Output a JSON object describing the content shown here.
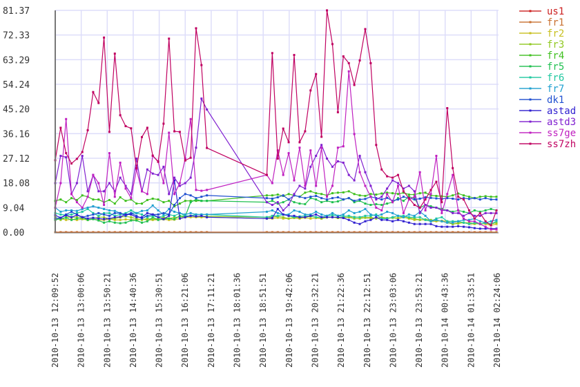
{
  "chart_data": {
    "type": "line",
    "title": "",
    "xlabel": "",
    "ylabel": "",
    "ylim": [
      0,
      81.37
    ],
    "y_ticks": [
      "0.00",
      "9.04",
      "18.08",
      "27.12",
      "36.16",
      "45.20",
      "54.24",
      "63.29",
      "72.33",
      "81.37"
    ],
    "x_ticks": [
      "2010-10-13 12:09:52",
      "2010-10-13 13:00:06",
      "2010-10-13 13:50:21",
      "2010-10-13 14:40:36",
      "2010-10-13 15:30:51",
      "2010-10-13 16:21:06",
      "2010-10-13 17:11:21",
      "2010-10-13 18:01:36",
      "2010-10-13 18:51:51",
      "2010-10-13 19:42:06",
      "2010-10-13 20:32:21",
      "2010-10-13 21:22:36",
      "2010-10-13 22:12:51",
      "2010-10-13 23:03:06",
      "2010-10-13 23:53:21",
      "2010-10-14 00:43:36",
      "2010-10-14 01:33:51",
      "2010-10-14 02:24:06"
    ],
    "x_range_minutes": [
      0,
      854.25
    ],
    "grid": true,
    "legend_position": "right",
    "sampling": [
      {
        "start_min": 0,
        "step_min": 10.47,
        "count": 29
      },
      {
        "start_min": 409,
        "step_min": 10.57,
        "count": 43
      }
    ],
    "series": [
      {
        "name": "us1",
        "color": "#cc2020",
        "values": [
          0,
          0,
          0,
          0,
          0,
          0,
          0,
          0,
          0,
          0,
          0,
          0,
          0,
          0,
          0,
          0,
          0,
          0,
          0,
          0,
          0,
          0,
          0,
          0,
          0,
          0,
          0,
          0,
          0,
          0,
          0,
          0,
          0,
          0,
          0,
          0,
          0,
          0,
          0,
          0,
          0,
          0,
          0,
          0,
          0,
          0,
          0,
          0,
          0,
          0,
          0,
          0,
          0,
          0,
          0,
          0,
          0,
          0,
          0,
          0,
          0,
          0,
          0,
          0,
          0,
          0,
          0,
          0,
          0,
          0,
          0,
          0
        ]
      },
      {
        "name": "fr1",
        "color": "#c87030",
        "values": [
          0,
          0,
          0,
          0,
          0,
          0,
          0,
          0,
          0,
          0,
          0,
          0,
          0,
          0,
          0,
          0,
          0,
          0,
          0,
          0,
          0,
          0,
          0,
          0,
          0,
          0,
          0,
          0,
          0,
          0,
          0,
          0,
          0,
          0,
          0,
          0,
          0,
          0,
          0,
          0,
          0,
          0,
          0,
          0,
          0,
          0,
          0,
          0,
          0,
          0,
          0,
          0,
          0,
          0,
          0,
          0,
          0,
          0,
          0,
          0,
          0,
          0,
          0,
          0,
          0,
          0,
          0,
          0,
          0,
          0,
          0,
          0
        ]
      },
      {
        "name": "fr2",
        "color": "#c8c020",
        "values": [
          4.5,
          5,
          4.5,
          4.7,
          4.5,
          4.8,
          4.5,
          4.8,
          4.5,
          4.5,
          4.8,
          4.5,
          4.5,
          4.7,
          4.6,
          4.5,
          4.8,
          4.5,
          4.5,
          4.6,
          4.7,
          4.5,
          4.6,
          5,
          5.5,
          5.5,
          5.5,
          5.5,
          5.5,
          5,
          5,
          5.3,
          5,
          5,
          5.2,
          5,
          5.3,
          5,
          5.2,
          5,
          5.4,
          5.5,
          5.2,
          5.5,
          5.5,
          5.6,
          5.5,
          5.3,
          5,
          5.3,
          5.3,
          5,
          5.3,
          5.2,
          5.5,
          5,
          4.5,
          4.6,
          4.5,
          4,
          4,
          4.2,
          4,
          3,
          3.5,
          3.5,
          3,
          3,
          3.2,
          3,
          2.5,
          3
        ]
      },
      {
        "name": "fr3",
        "color": "#90c820",
        "values": [
          5.5,
          4.5,
          5.5,
          5.5,
          5.5,
          4.8,
          4.5,
          5,
          5.5,
          5.5,
          4.8,
          5,
          5.5,
          5.8,
          5.5,
          5,
          4.5,
          5,
          4.7,
          5,
          5.5,
          5,
          5.5,
          5.5,
          5.8,
          6,
          5.8,
          5.8,
          5.8,
          5.5,
          5.5,
          5.8,
          5.5,
          5,
          5.5,
          5.3,
          5.5,
          5.8,
          5.5,
          5,
          5.5,
          5.6,
          5.2,
          5.3,
          5.5,
          5,
          5,
          5.3,
          5.5,
          5,
          5.5,
          5.2,
          5.3,
          5,
          5.5,
          5.2,
          5,
          4.5,
          4.7,
          4.5,
          4.3,
          4,
          3.5,
          3,
          3.2,
          3.5,
          3.5,
          3.2,
          3,
          3.3,
          3,
          3.5
        ]
      },
      {
        "name": "fr4",
        "color": "#40c020",
        "values": [
          11.5,
          12,
          11,
          12.5,
          11.8,
          13.5,
          13,
          12,
          12,
          11,
          11.8,
          10.5,
          12.8,
          11.5,
          12,
          10.5,
          10.5,
          11.8,
          12.3,
          12,
          11,
          11.5,
          9.5,
          10.5,
          11.5,
          11.5,
          11.5,
          11.5,
          11.5,
          13.5,
          13.5,
          13.8,
          13.3,
          14,
          13.5,
          13,
          14.5,
          15,
          14.3,
          14,
          13.5,
          14.3,
          14.5,
          14.6,
          15,
          14,
          13.5,
          13.3,
          14,
          13.8,
          14.2,
          14.5,
          14.3,
          14,
          14.5,
          13.8,
          13.8,
          14.3,
          14.5,
          13.5,
          13.3,
          13.2,
          13,
          13.5,
          14.2,
          13.5,
          13,
          12.5,
          13,
          13.2,
          13,
          13
        ]
      },
      {
        "name": "fr5",
        "color": "#20c050",
        "values": [
          4.5,
          5,
          5.3,
          4.5,
          5,
          5.5,
          4.5,
          4.8,
          4.3,
          3.5,
          4,
          3.5,
          3.3,
          3.5,
          4.3,
          4.3,
          3.5,
          4,
          5.5,
          4.5,
          4.8,
          5,
          4.8,
          6,
          5.8,
          11,
          12,
          11.5,
          11.5,
          11,
          11.5,
          10.5,
          11,
          12,
          11,
          10.5,
          10.3,
          12.5,
          12,
          11,
          11.5,
          11,
          11.3,
          12,
          12.5,
          11,
          11.5,
          10.5,
          10,
          10.3,
          10,
          10.5,
          11,
          12.5,
          11.5,
          13,
          12.5,
          9,
          10,
          9.5,
          9,
          8.5,
          8,
          7.5,
          8,
          7.5,
          7,
          8,
          7.5,
          8,
          8.5,
          8
        ]
      },
      {
        "name": "fr6",
        "color": "#20c8a0",
        "values": [
          7,
          6.5,
          6.3,
          6.5,
          7,
          7.5,
          8.5,
          7,
          6,
          7,
          7,
          6,
          6.5,
          7,
          8,
          7,
          6.5,
          5.5,
          6,
          5.5,
          6,
          6.5,
          6,
          7,
          6,
          6,
          6.5,
          6.5,
          6.5,
          5.5,
          6,
          6,
          6.5,
          6,
          5.5,
          5.8,
          6,
          6,
          5.5,
          5.5,
          6,
          6.3,
          6,
          5.8,
          6,
          5.5,
          5.5,
          6,
          6,
          6.5,
          5,
          5,
          5.5,
          6,
          6,
          5.5,
          5.5,
          5.5,
          4.5,
          4,
          5,
          5.5,
          4,
          4,
          4,
          3.5,
          3,
          3.5,
          3,
          3.5,
          3,
          4
        ]
      },
      {
        "name": "fr7",
        "color": "#20a0d0",
        "values": [
          9,
          7.5,
          8,
          8,
          7.8,
          8.5,
          9,
          9.5,
          9,
          8.5,
          8,
          7.8,
          7,
          6.5,
          7,
          7,
          7.8,
          8,
          9.8,
          8,
          6.5,
          8.5,
          7.5,
          7,
          6.5,
          7,
          6.5,
          6.5,
          6.5,
          7.5,
          8,
          7,
          6.5,
          6.5,
          8,
          7.5,
          6.5,
          6.5,
          7.5,
          6.5,
          6,
          7,
          6,
          6.5,
          8,
          7,
          7.5,
          8.5,
          6.5,
          6,
          6.5,
          7.5,
          7,
          6,
          5.5,
          6.5,
          6,
          7.5,
          6,
          4,
          4.5,
          4,
          3.5,
          3.5,
          4,
          4.5,
          4.5,
          5,
          4,
          3.5,
          4,
          4.5
        ]
      },
      {
        "name": "dk1",
        "color": "#2050d0",
        "values": [
          5,
          5.3,
          6.5,
          7.5,
          6.5,
          5.5,
          6,
          6.5,
          7,
          6.5,
          6,
          7,
          7,
          6,
          7,
          6,
          5,
          6,
          6.5,
          6.5,
          7,
          6.5,
          10,
          12.5,
          14,
          13.5,
          12.5,
          13,
          13.5,
          12.5,
          12.3,
          12.8,
          13.5,
          12,
          13.5,
          13,
          12.5,
          13,
          13.3,
          12.5,
          12,
          12.5,
          12.8,
          12,
          12.5,
          11.5,
          12,
          12.2,
          13,
          12.5,
          12,
          12.6,
          11.5,
          12,
          13,
          12.5,
          12,
          12.3,
          12.8,
          12.6,
          12.4,
          12.2,
          12.5,
          12.3,
          12,
          12.5,
          12.2,
          12.5,
          12,
          12.5,
          12,
          12
        ]
      },
      {
        "name": "astad",
        "color": "#3020d0",
        "values": [
          6.2,
          5.3,
          6.2,
          5.5,
          6.3,
          5.5,
          5,
          5.3,
          5,
          4.8,
          5,
          5.5,
          5.6,
          6.5,
          6.5,
          5.5,
          5.5,
          7,
          6.5,
          5.5,
          4.8,
          6,
          19,
          5,
          5.5,
          6,
          5.8,
          6,
          5.5,
          5,
          5.2,
          8.5,
          6.5,
          6,
          6,
          5.5,
          5.5,
          6,
          6.5,
          5.5,
          5.5,
          5.5,
          5.5,
          5.2,
          4.5,
          3.5,
          3,
          4,
          4.5,
          5.5,
          4.5,
          4.5,
          4,
          4.5,
          4,
          3.5,
          3,
          3,
          3,
          3,
          2.2,
          2,
          2,
          2,
          2.2,
          2,
          1.8,
          1.5,
          1.3,
          1.3,
          1.3,
          1.3
        ]
      },
      {
        "name": "astd3",
        "color": "#8020d0",
        "values": [
          18,
          28,
          27.5,
          14,
          18,
          28,
          15,
          21,
          15,
          15,
          18,
          15,
          20,
          17,
          14,
          27,
          15,
          23,
          21.5,
          21,
          24,
          14,
          20,
          17,
          18,
          20,
          31,
          49,
          45,
          11,
          10,
          11,
          8,
          10,
          14,
          17,
          16,
          24,
          28,
          32,
          27,
          24,
          26,
          25.5,
          21,
          19,
          28,
          22,
          17,
          12,
          13,
          16,
          19,
          18,
          16,
          17,
          15,
          7,
          10,
          9,
          9,
          8,
          8,
          7,
          7,
          6,
          7,
          6,
          6,
          7,
          7,
          7
        ]
      },
      {
        "name": "ss7ge",
        "color": "#c020c0",
        "values": [
          9,
          18,
          41.5,
          14,
          11,
          9,
          13,
          21,
          18,
          10,
          29,
          13,
          25.5,
          16,
          12.5,
          23,
          15,
          14,
          28,
          26,
          18,
          36.5,
          14,
          18,
          27,
          41.5,
          15.5,
          15.2,
          15.5,
          21,
          18,
          30,
          21,
          29,
          19,
          31,
          17,
          30,
          17,
          31,
          13,
          17,
          31,
          31.5,
          59,
          36,
          22,
          17,
          13,
          9,
          8,
          14,
          11,
          17,
          7,
          12,
          13,
          22,
          8,
          14,
          28,
          7,
          14,
          21,
          8,
          5,
          4,
          4,
          3,
          2,
          1,
          1
        ]
      },
      {
        "name": "ss7zh",
        "color": "#c00060",
        "values": [
          26.4,
          38.3,
          29,
          25.2,
          26.9,
          29.4,
          37.4,
          51.4,
          47.4,
          71.4,
          36.8,
          65.5,
          42.9,
          38.9,
          38.1,
          23.5,
          34.9,
          38.3,
          28.1,
          25.8,
          39.8,
          71,
          37,
          36.8,
          26.3,
          27.3,
          74.8,
          61.3,
          30.9,
          21,
          65.7,
          27,
          38,
          33,
          65,
          33,
          37,
          52,
          58,
          35,
          81.37,
          69,
          44,
          64.5,
          62,
          54,
          63,
          74.5,
          62,
          32,
          23,
          20.5,
          20,
          21,
          15,
          12.5,
          10,
          9,
          12,
          15.5,
          18.5,
          11,
          45.5,
          23.5,
          13,
          12,
          8,
          5,
          7,
          4,
          2.5,
          8
        ]
      }
    ]
  }
}
